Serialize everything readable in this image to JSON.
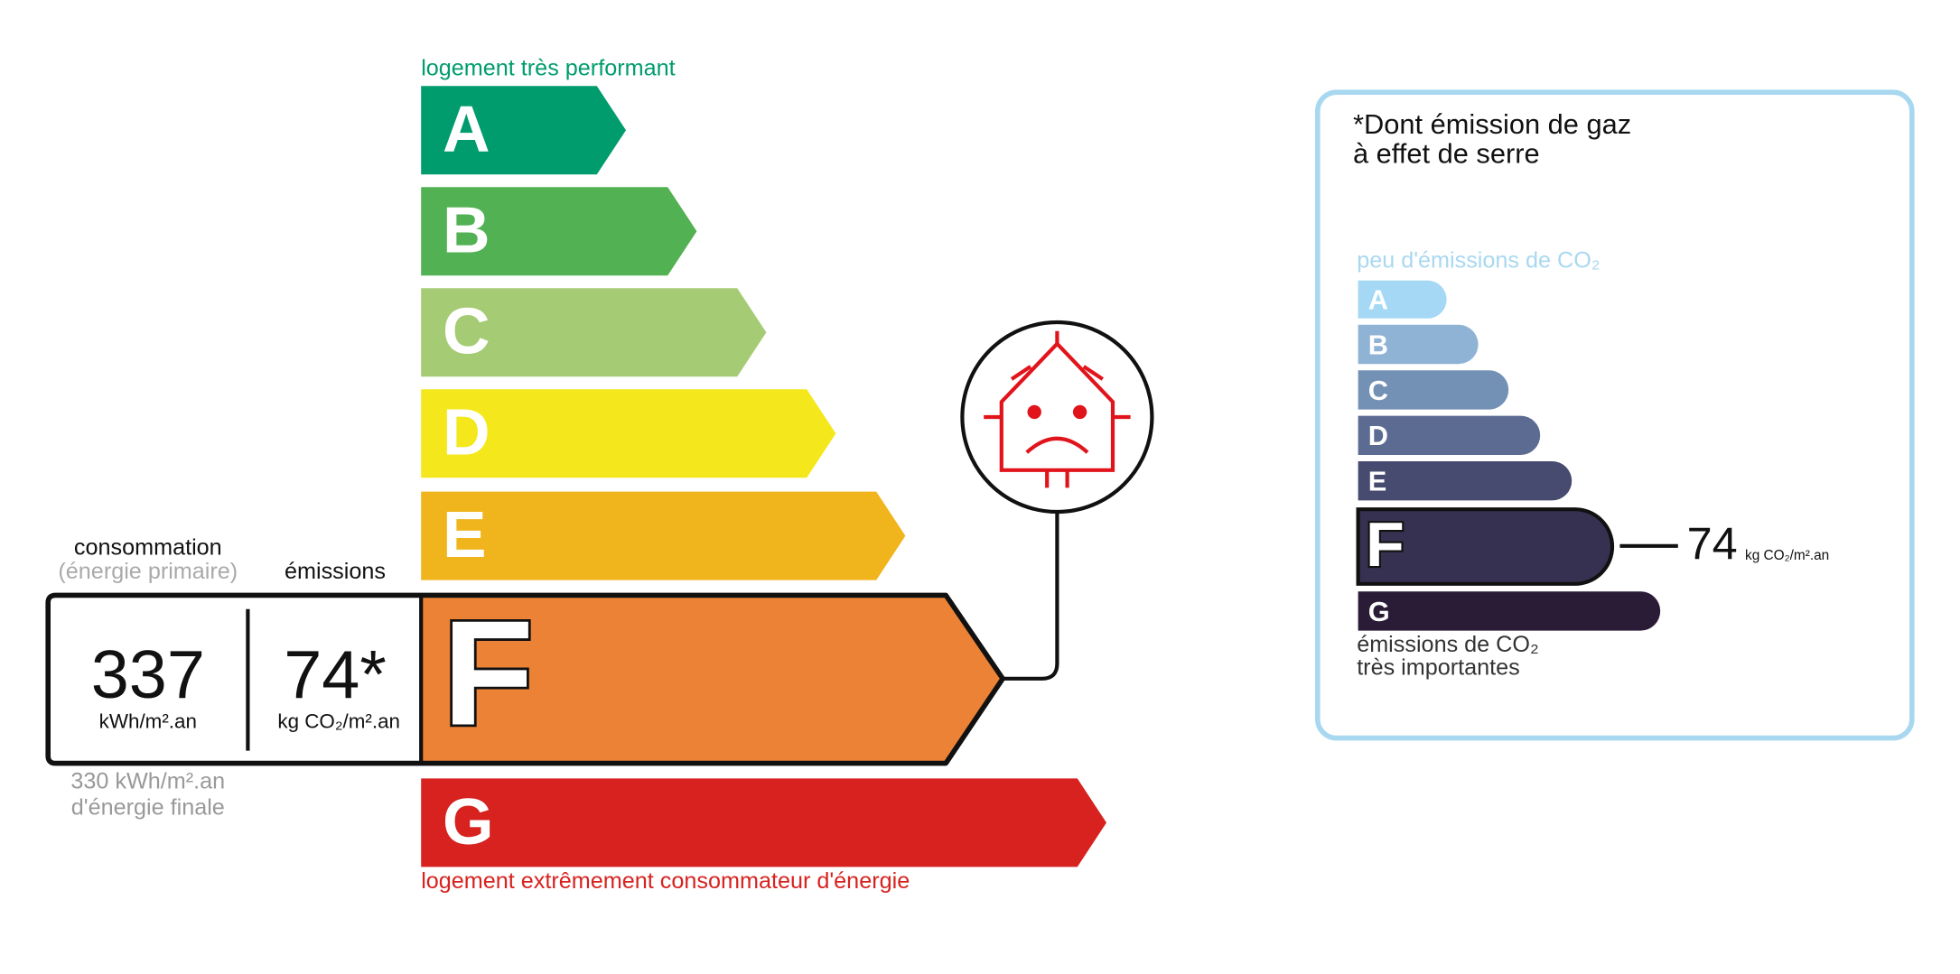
{
  "energy": {
    "top_label": "logement très performant",
    "bottom_label": "logement extrêmement consommateur d'énergie",
    "classes": [
      {
        "letter": "A",
        "color": "#009c6d"
      },
      {
        "letter": "B",
        "color": "#52b153"
      },
      {
        "letter": "C",
        "color": "#a5cc74"
      },
      {
        "letter": "D",
        "color": "#f4e81c"
      },
      {
        "letter": "E",
        "color": "#f0b41c"
      },
      {
        "letter": "F",
        "color": "#eb8235"
      },
      {
        "letter": "G",
        "color": "#d7221f"
      }
    ],
    "consumption_header": "consommation",
    "consumption_subheader": "(énergie primaire)",
    "emissions_header": "émissions",
    "consumption_value": 337,
    "consumption_unit": "kWh/m².an",
    "emissions_value": "74*",
    "emissions_unit": "kg CO₂/m².an",
    "final_energy": "330 kWh/m².an",
    "final_energy_label": "d'énergie finale"
  },
  "ges": {
    "title_lines": [
      "*Dont émission de gaz",
      "à effet de serre"
    ],
    "top_label": "peu d'émissions de CO₂",
    "classes": [
      {
        "letter": "A",
        "color": "#a4d8f5"
      },
      {
        "letter": "B",
        "color": "#8fb3d5"
      },
      {
        "letter": "C",
        "color": "#7390b5"
      },
      {
        "letter": "D",
        "color": "#5c6b92"
      },
      {
        "letter": "E",
        "color": "#474b70"
      },
      {
        "letter": "F",
        "color": "#363150"
      },
      {
        "letter": "G",
        "color": "#2a1c37"
      }
    ],
    "value": 74,
    "unit": "kg CO₂/m².an",
    "bottom_label_lines": [
      "émissions de CO₂",
      "très importantes"
    ]
  }
}
